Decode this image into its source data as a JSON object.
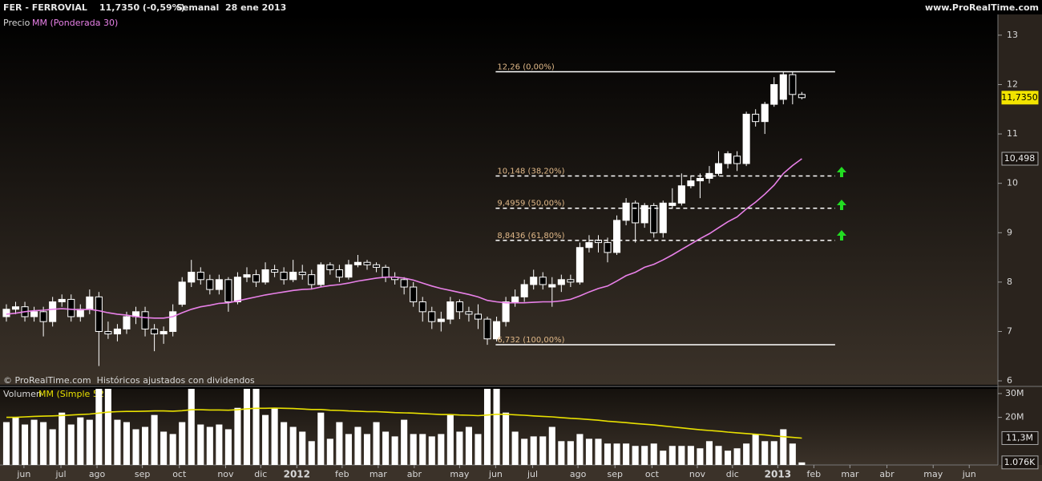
{
  "header": {
    "symbol": "FER - FERROVIAL",
    "quote": "11,7350 (-0,59%)",
    "period": "Semanal  28 ene 2013",
    "site": "www.ProRealTime.com"
  },
  "chart_data": [
    {
      "type": "candlestick",
      "series": [
        {
          "name": "Precio",
          "color": "#ffffff",
          "open": [
            7.3,
            7.45,
            7.5,
            7.3,
            7.4,
            7.2,
            7.6,
            7.65,
            7.3,
            7.45,
            7.7,
            7.0,
            6.95,
            7.05,
            7.3,
            7.4,
            7.05,
            6.95,
            7.0,
            7.55,
            8.0,
            8.2,
            8.05,
            7.85,
            8.05,
            7.6,
            8.1,
            8.15,
            8.0,
            8.25,
            8.2,
            8.05,
            8.2,
            8.15,
            7.95,
            8.35,
            8.25,
            8.1,
            8.35,
            8.4,
            8.35,
            8.3,
            8.1,
            8.05,
            7.9,
            7.6,
            7.4,
            7.2,
            7.25,
            7.6,
            7.4,
            7.35,
            7.25,
            6.85,
            7.2,
            7.6,
            7.7,
            7.95,
            8.1,
            7.9,
            7.95,
            8.05,
            8.0,
            8.7,
            8.85,
            8.8,
            8.6,
            9.25,
            9.6,
            9.2,
            9.55,
            9.0,
            9.55,
            9.6,
            9.95,
            10.05,
            10.1,
            10.2,
            10.4,
            10.55,
            10.4,
            11.4,
            11.25,
            11.6,
            11.7,
            12.2,
            11.8
          ],
          "high": [
            7.55,
            7.6,
            7.6,
            7.5,
            7.5,
            7.7,
            7.75,
            7.75,
            7.55,
            7.85,
            7.8,
            7.2,
            7.15,
            7.4,
            7.5,
            7.5,
            7.15,
            7.1,
            7.55,
            8.1,
            8.45,
            8.3,
            8.15,
            8.15,
            8.1,
            8.2,
            8.3,
            8.25,
            8.4,
            8.35,
            8.3,
            8.45,
            8.35,
            8.25,
            8.4,
            8.4,
            8.35,
            8.45,
            8.55,
            8.45,
            8.4,
            8.35,
            8.2,
            8.1,
            8.0,
            7.7,
            7.5,
            7.4,
            7.7,
            7.65,
            7.5,
            7.55,
            7.3,
            7.3,
            7.7,
            7.85,
            8.05,
            8.25,
            8.2,
            8.1,
            8.15,
            8.15,
            8.8,
            8.95,
            8.95,
            8.9,
            9.35,
            9.7,
            9.65,
            9.6,
            9.6,
            9.65,
            9.9,
            10.2,
            10.15,
            10.2,
            10.35,
            10.65,
            10.65,
            10.65,
            11.45,
            11.5,
            11.65,
            12.15,
            12.26,
            12.26,
            11.85
          ],
          "low": [
            7.2,
            7.35,
            7.2,
            7.2,
            6.9,
            7.1,
            7.5,
            7.2,
            7.2,
            7.35,
            6.3,
            6.85,
            6.8,
            6.95,
            7.15,
            6.9,
            6.6,
            6.75,
            6.9,
            7.5,
            7.9,
            7.95,
            7.75,
            7.75,
            7.4,
            7.55,
            8.0,
            7.9,
            7.95,
            8.1,
            7.95,
            8.0,
            8.05,
            7.85,
            7.9,
            8.15,
            8.0,
            8.05,
            8.3,
            8.25,
            8.2,
            8.0,
            7.95,
            7.75,
            7.5,
            7.2,
            7.05,
            7.0,
            7.15,
            7.25,
            7.2,
            7.05,
            6.73,
            6.8,
            7.1,
            7.5,
            7.6,
            7.85,
            7.85,
            7.5,
            7.8,
            7.9,
            7.95,
            8.6,
            8.6,
            8.4,
            8.55,
            9.15,
            8.8,
            9.1,
            8.9,
            8.9,
            9.5,
            9.55,
            9.9,
            9.7,
            10.0,
            10.15,
            10.3,
            10.25,
            10.35,
            11.15,
            11.0,
            11.55,
            11.6,
            11.6,
            11.7
          ],
          "close": [
            7.45,
            7.5,
            7.3,
            7.4,
            7.2,
            7.6,
            7.65,
            7.3,
            7.45,
            7.7,
            7.0,
            6.95,
            7.05,
            7.3,
            7.4,
            7.05,
            6.95,
            7.0,
            7.4,
            8.0,
            8.2,
            8.05,
            7.85,
            8.05,
            7.6,
            8.1,
            8.15,
            8.0,
            8.25,
            8.2,
            8.05,
            8.2,
            8.15,
            7.95,
            8.35,
            8.25,
            8.1,
            8.35,
            8.4,
            8.35,
            8.3,
            8.1,
            8.05,
            7.9,
            7.6,
            7.4,
            7.2,
            7.25,
            7.6,
            7.4,
            7.35,
            7.25,
            6.85,
            7.2,
            7.6,
            7.7,
            7.95,
            8.1,
            7.95,
            7.95,
            8.05,
            8.0,
            8.7,
            8.8,
            8.8,
            8.6,
            9.25,
            9.6,
            9.2,
            9.55,
            9.0,
            9.6,
            9.6,
            9.95,
            10.05,
            10.1,
            10.2,
            10.4,
            10.6,
            10.4,
            11.4,
            11.25,
            11.6,
            12.0,
            12.2,
            11.8,
            11.735
          ]
        },
        {
          "name": "MM (Ponderada 30)",
          "color": "#e880e8",
          "values": [
            7.35,
            7.37,
            7.4,
            7.42,
            7.43,
            7.45,
            7.46,
            7.45,
            7.44,
            7.45,
            7.42,
            7.38,
            7.35,
            7.33,
            7.3,
            7.28,
            7.27,
            7.27,
            7.3,
            7.38,
            7.45,
            7.5,
            7.53,
            7.57,
            7.58,
            7.62,
            7.66,
            7.7,
            7.74,
            7.77,
            7.8,
            7.83,
            7.85,
            7.86,
            7.9,
            7.93,
            7.95,
            7.98,
            8.02,
            8.05,
            8.08,
            8.1,
            8.1,
            8.08,
            8.04,
            7.98,
            7.92,
            7.87,
            7.83,
            7.79,
            7.75,
            7.7,
            7.63,
            7.6,
            7.58,
            7.58,
            7.58,
            7.59,
            7.6,
            7.6,
            7.62,
            7.65,
            7.72,
            7.8,
            7.87,
            7.92,
            8.02,
            8.13,
            8.2,
            8.3,
            8.36,
            8.45,
            8.55,
            8.66,
            8.77,
            8.88,
            8.98,
            9.1,
            9.22,
            9.32,
            9.48,
            9.62,
            9.78,
            9.96,
            10.2,
            10.36,
            10.498
          ]
        }
      ],
      "ylim": [
        5.92,
        13.42
      ],
      "yticks": [
        6,
        7,
        8,
        9,
        10,
        11,
        12,
        13
      ],
      "fibonacci": {
        "xrange": [
          52.9,
          89.6
        ],
        "dashed": [
          false,
          true,
          true,
          true,
          false
        ],
        "levels": [
          {
            "value": 12.26,
            "label": "12,26 (0,00%)"
          },
          {
            "value": 10.148,
            "label": "10,148 (38,20%)"
          },
          {
            "value": 9.4959,
            "label": "9,4959 (50,00%)"
          },
          {
            "value": 8.8436,
            "label": "8,8436 (61,80%)"
          },
          {
            "value": 6.732,
            "label": "6,732 (100,00%)"
          }
        ]
      },
      "last_labels": [
        {
          "value": 11.735,
          "label": "11,7350"
        },
        {
          "value": 10.498,
          "label": "10,498"
        }
      ],
      "note": "© ProRealTime.com  Históricos ajustados con dividendos"
    },
    {
      "type": "bar",
      "series": [
        {
          "name": "Volumen",
          "color": "#ffffff",
          "values": [
            18,
            20,
            17,
            19,
            18,
            15,
            22,
            17,
            20,
            19,
            32,
            32,
            19,
            18,
            15,
            16,
            21,
            14,
            13,
            18,
            32,
            17,
            16,
            17,
            15,
            24,
            32,
            32,
            21,
            24,
            18,
            16,
            14,
            10,
            22,
            11,
            18,
            13,
            16,
            13,
            18,
            14,
            12,
            19,
            13,
            13,
            12,
            13,
            21,
            14,
            16,
            13,
            32,
            32,
            22,
            14,
            11,
            12,
            12,
            16,
            10,
            10,
            13,
            11,
            11,
            9,
            9,
            9,
            8,
            8,
            9,
            6,
            8,
            8,
            8,
            7,
            10,
            8,
            6,
            7,
            9,
            13,
            10,
            10,
            15,
            9,
            1.076
          ]
        },
        {
          "name": "MM (Simple 52)",
          "color": "#e8e000",
          "values": [
            20,
            20,
            20.2,
            20.4,
            20.5,
            20.6,
            20.8,
            21,
            21.2,
            21.4,
            21.8,
            22.2,
            22.4,
            22.5,
            22.5,
            22.6,
            22.7,
            22.7,
            22.6,
            22.8,
            23.2,
            23.2,
            23.1,
            23.1,
            23,
            23.2,
            23.6,
            23.8,
            23.8,
            23.9,
            23.8,
            23.7,
            23.5,
            23.3,
            23.3,
            23,
            22.9,
            22.7,
            22.6,
            22.4,
            22.4,
            22.2,
            22,
            21.9,
            21.8,
            21.6,
            21.4,
            21.2,
            21.2,
            21,
            20.9,
            20.7,
            21,
            21.3,
            21.3,
            21.1,
            20.9,
            20.6,
            20.4,
            20.2,
            19.9,
            19.6,
            19.4,
            19.1,
            18.8,
            18.4,
            18.1,
            17.8,
            17.4,
            17.1,
            16.8,
            16.4,
            16,
            15.6,
            15.2,
            14.8,
            14.5,
            14.2,
            13.8,
            13.5,
            13.2,
            12.9,
            12.6,
            12.2,
            11.9,
            11.6,
            11.3
          ]
        }
      ],
      "ylim": [
        0,
        32
      ],
      "yticks": [
        {
          "value": 30,
          "label": "30M"
        },
        {
          "value": 20,
          "label": "20M"
        }
      ],
      "last_labels": [
        {
          "value": 11.3,
          "label": "11,3M"
        },
        {
          "value": 1.076,
          "label": "1.076K"
        }
      ],
      "xlim": [
        -0.69,
        107.2
      ],
      "xticks": [
        {
          "value": 1.9,
          "label": "jun"
        },
        {
          "value": 5.9,
          "label": "jul"
        },
        {
          "value": 9.8,
          "label": "ago"
        },
        {
          "value": 14.7,
          "label": "sep"
        },
        {
          "value": 18.7,
          "label": "oct"
        },
        {
          "value": 23.7,
          "label": "nov"
        },
        {
          "value": 27.5,
          "label": "dic"
        },
        {
          "value": 31.4,
          "label": "2012"
        },
        {
          "value": 36.3,
          "label": "feb"
        },
        {
          "value": 40.2,
          "label": "mar"
        },
        {
          "value": 44.1,
          "label": "abr"
        },
        {
          "value": 49.0,
          "label": "may"
        },
        {
          "value": 52.9,
          "label": "jun"
        },
        {
          "value": 56.9,
          "label": "jul"
        },
        {
          "value": 61.8,
          "label": "ago"
        },
        {
          "value": 65.8,
          "label": "sep"
        },
        {
          "value": 69.8,
          "label": "oct"
        },
        {
          "value": 74.7,
          "label": "nov"
        },
        {
          "value": 78.5,
          "label": "dic"
        },
        {
          "value": 83.4,
          "label": "2013"
        },
        {
          "value": 87.3,
          "label": "feb"
        },
        {
          "value": 91.2,
          "label": "mar"
        },
        {
          "value": 95.2,
          "label": "abr"
        },
        {
          "value": 100.2,
          "label": "may"
        },
        {
          "value": 104.1,
          "label": "jun"
        }
      ]
    }
  ]
}
